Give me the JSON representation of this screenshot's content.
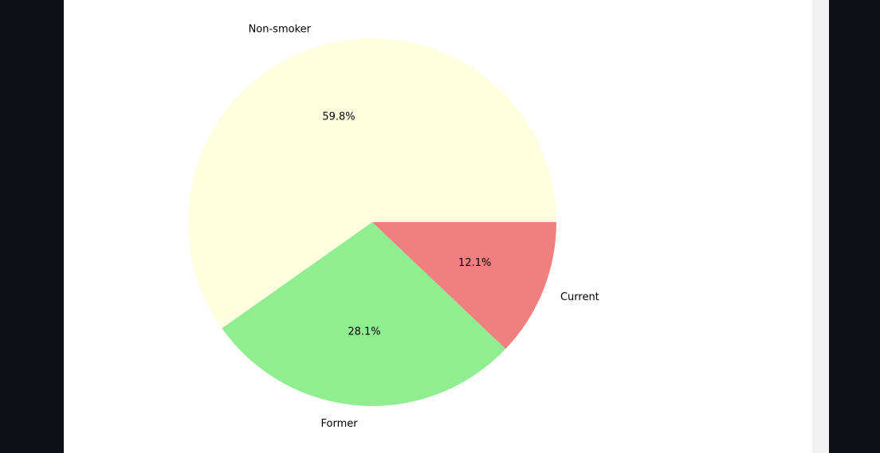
{
  "chart_data": {
    "type": "pie",
    "categories": [
      "Non-smoker",
      "Former",
      "Current"
    ],
    "values": [
      59.8,
      28.1,
      12.1
    ],
    "value_labels": [
      "59.8%",
      "28.1%",
      "12.1%"
    ],
    "colors": [
      "#ffffe0",
      "#90ee90",
      "#f08080"
    ],
    "start": "0° (3 o'clock), counter-clockwise",
    "title": "",
    "legend": "none"
  }
}
